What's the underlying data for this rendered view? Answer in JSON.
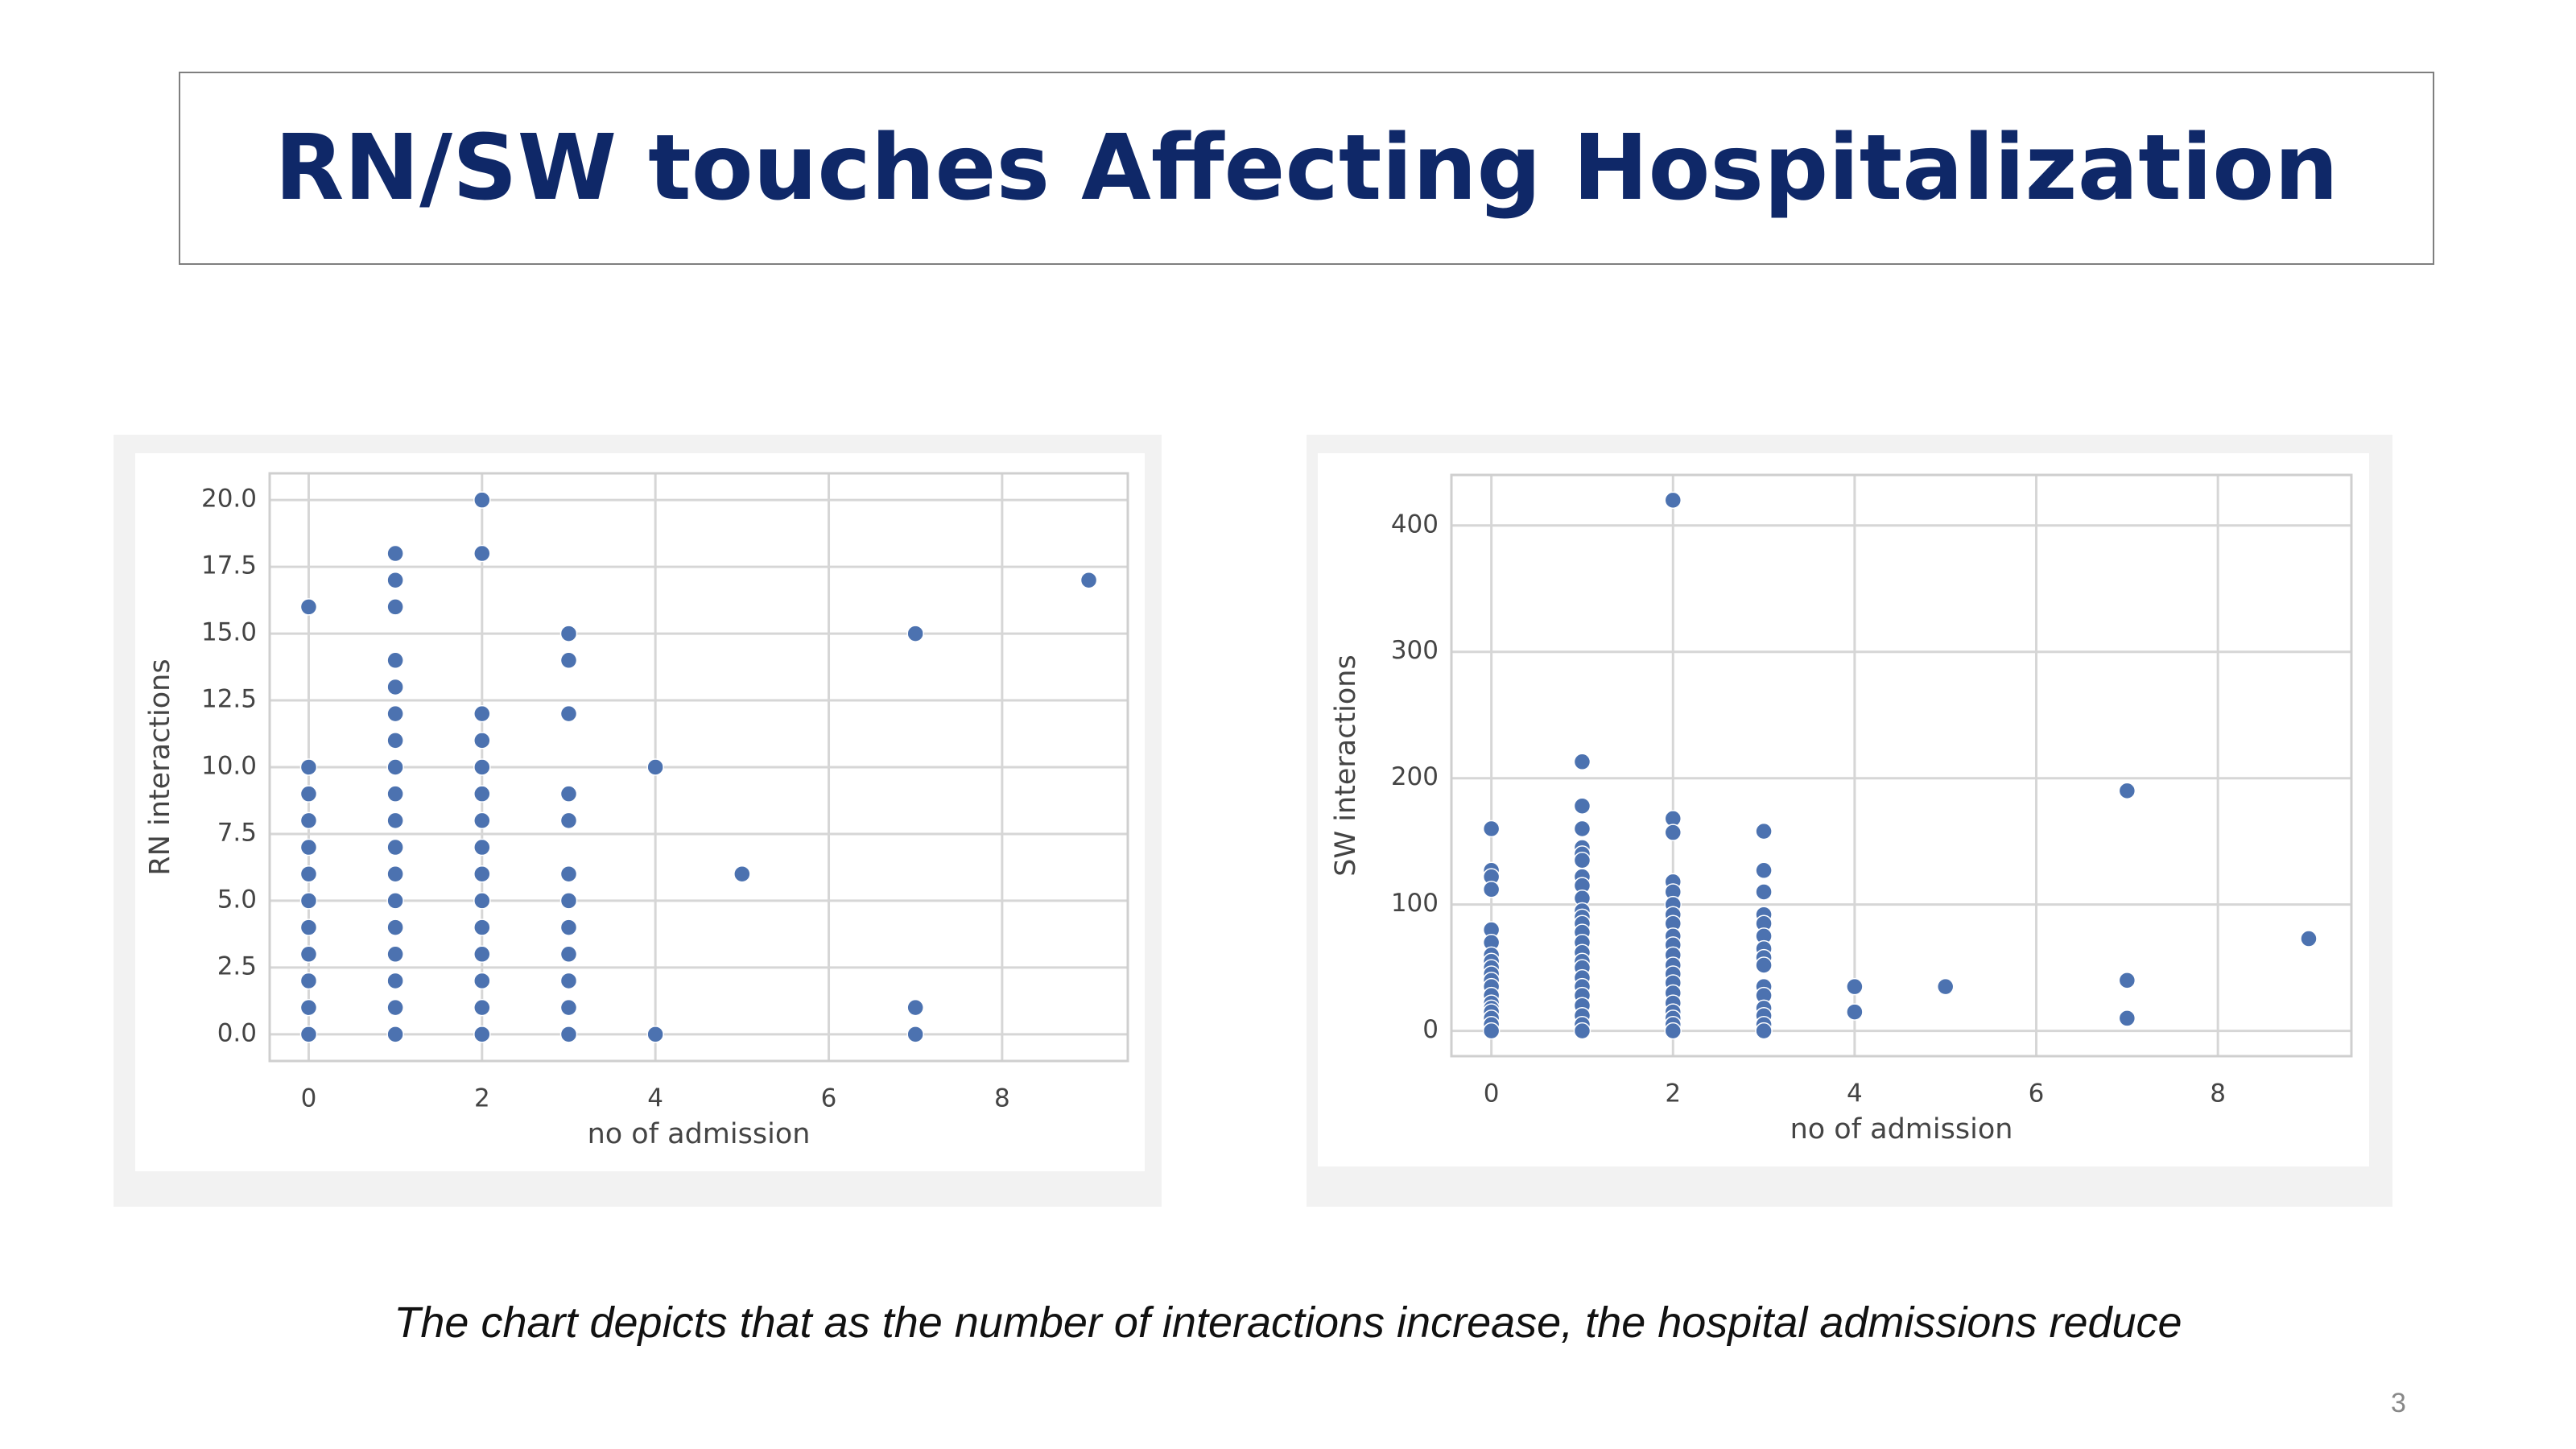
{
  "slide": {
    "title": "RN/SW touches Affecting Hospitalization",
    "caption": "The chart depicts that as the number of interactions increase, the hospital admissions reduce",
    "page_number": "3"
  },
  "chart_data": [
    {
      "type": "scatter",
      "x_label": "no of admission",
      "y_label": "RN interactions",
      "color": "#4c72b0",
      "grid": true,
      "x": [
        0,
        0,
        0,
        0,
        0,
        0,
        0,
        0,
        0,
        0,
        0,
        0,
        1,
        1,
        1,
        1,
        1,
        1,
        1,
        1,
        1,
        1,
        1,
        1,
        1,
        1,
        1,
        1,
        1,
        1,
        2,
        2,
        2,
        2,
        2,
        2,
        2,
        2,
        2,
        2,
        2,
        2,
        2,
        2,
        2,
        3,
        3,
        3,
        3,
        3,
        3,
        3,
        3,
        3,
        3,
        3,
        3,
        4,
        4,
        5,
        7,
        7,
        7,
        9
      ],
      "values": [
        16,
        10,
        9,
        8,
        7,
        6,
        5,
        4,
        3,
        2,
        1,
        0,
        18,
        17,
        16,
        14,
        13,
        12,
        11,
        10,
        9,
        8,
        7,
        6,
        5,
        4,
        3,
        2,
        1,
        0,
        20,
        18,
        12,
        11,
        10,
        9,
        8,
        7,
        6,
        5,
        4,
        3,
        2,
        1,
        0,
        15,
        14,
        12,
        9,
        8,
        6,
        5,
        4,
        3,
        2,
        1,
        0,
        10,
        0,
        6,
        15,
        1,
        0,
        17
      ],
      "xlim": [
        -0.45,
        9.45
      ],
      "ylim": [
        -1,
        21
      ],
      "xticks": [
        0,
        2,
        4,
        6,
        8
      ],
      "yticks": [
        {
          "value": 0,
          "label": "0.0"
        },
        {
          "value": 2.5,
          "label": "2.5"
        },
        {
          "value": 5,
          "label": "5.0"
        },
        {
          "value": 7.5,
          "label": "7.5"
        },
        {
          "value": 10,
          "label": "10.0"
        },
        {
          "value": 12.5,
          "label": "12.5"
        },
        {
          "value": 15,
          "label": "15.0"
        },
        {
          "value": 17.5,
          "label": "17.5"
        },
        {
          "value": 20,
          "label": "20.0"
        }
      ]
    },
    {
      "type": "scatter",
      "x_label": "no of admission",
      "y_label": "SW interactions",
      "color": "#4c72b0",
      "grid": true,
      "x": [
        0,
        0,
        0,
        0,
        0,
        0,
        0,
        0,
        0,
        0,
        0,
        0,
        0,
        0,
        0,
        0,
        0,
        0,
        0,
        1,
        1,
        1,
        1,
        1,
        1,
        1,
        1,
        1,
        1,
        1,
        1,
        1,
        1,
        1,
        1,
        1,
        1,
        1,
        1,
        1,
        1,
        1,
        1,
        2,
        2,
        2,
        2,
        2,
        2,
        2,
        2,
        2,
        2,
        2,
        2,
        2,
        2,
        2,
        2,
        2,
        2,
        2,
        2,
        3,
        3,
        3,
        3,
        3,
        3,
        3,
        3,
        3,
        3,
        3,
        3,
        3,
        3,
        3,
        4,
        4,
        5,
        7,
        7,
        7,
        9
      ],
      "values": [
        160,
        127,
        122,
        112,
        80,
        70,
        60,
        55,
        50,
        45,
        40,
        35,
        28,
        22,
        18,
        15,
        10,
        5,
        0,
        213,
        178,
        160,
        145,
        140,
        135,
        122,
        115,
        105,
        95,
        90,
        85,
        78,
        70,
        62,
        55,
        50,
        42,
        35,
        28,
        20,
        12,
        5,
        0,
        420,
        168,
        157,
        118,
        110,
        100,
        92,
        85,
        75,
        68,
        60,
        52,
        45,
        38,
        30,
        22,
        15,
        10,
        5,
        0,
        158,
        127,
        110,
        92,
        85,
        75,
        65,
        58,
        52,
        35,
        28,
        18,
        12,
        5,
        0,
        35,
        15,
        35,
        190,
        40,
        10,
        73
      ],
      "xlim": [
        -0.44,
        9.47
      ],
      "ylim": [
        -20,
        440
      ],
      "xticks": [
        0,
        2,
        4,
        6,
        8
      ],
      "yticks": [
        0,
        100,
        200,
        300,
        400
      ]
    }
  ]
}
